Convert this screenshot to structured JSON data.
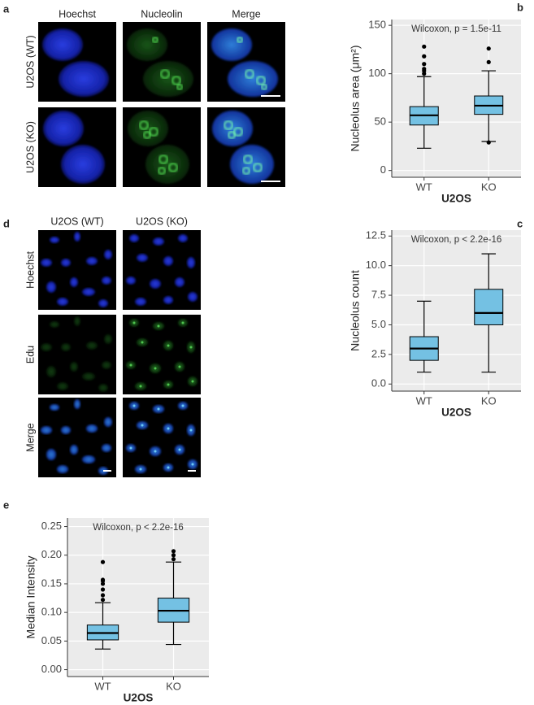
{
  "panel_labels": [
    "a",
    "b",
    "c",
    "d",
    "e"
  ],
  "panel_a": {
    "columns": [
      "Hoechst",
      "Nucleolin",
      "Merge"
    ],
    "rows": [
      "U2OS (WT)",
      "U2OS (KO)"
    ]
  },
  "panel_d": {
    "columns": [
      "U2OS (WT)",
      "U2OS (KO)"
    ],
    "rows": [
      "Hoechst",
      "Edu",
      "Merge"
    ]
  },
  "chart_data": [
    {
      "type": "box",
      "annotation": "Wilcoxon, p = 1.5e-11",
      "ylabel": "Nucleolus area (μm²)",
      "xlabel": "U2OS",
      "categories": [
        "WT",
        "KO"
      ],
      "color": "#74c1e3",
      "grid": true,
      "boxes": [
        {
          "min": 23,
          "q1": 47,
          "median": 57,
          "q3": 66,
          "max": 97,
          "outliers": [
            100,
            103,
            105,
            110,
            118,
            128
          ]
        },
        {
          "min": 30,
          "q1": 58,
          "median": 67,
          "q3": 77,
          "max": 103,
          "outliers": [
            29,
            112,
            126
          ]
        }
      ],
      "ylim": [
        -7,
        156
      ],
      "yticks": [
        0,
        50,
        100,
        150
      ]
    },
    {
      "type": "box",
      "annotation": "Wilcoxon, p < 2.2e-16",
      "ylabel": "Nucleolus count",
      "xlabel": "U2OS",
      "categories": [
        "WT",
        "KO"
      ],
      "color": "#74c1e3",
      "grid": true,
      "boxes": [
        {
          "min": 1,
          "q1": 2,
          "median": 3,
          "q3": 4,
          "max": 7,
          "outliers": []
        },
        {
          "min": 1,
          "q1": 5,
          "median": 6,
          "q3": 8,
          "max": 11,
          "outliers": []
        }
      ],
      "ylim": [
        -0.6,
        13
      ],
      "yticks": [
        {
          "value": 0,
          "label": "0.0"
        },
        2.5,
        {
          "value": 5,
          "label": "5.0"
        },
        7.5,
        {
          "value": 10,
          "label": "10.0"
        },
        12.5
      ]
    },
    {
      "type": "box",
      "annotation": "Wilcoxon, p < 2.2e-16",
      "ylabel": "Median Intensity",
      "xlabel": "U2OS",
      "categories": [
        "WT",
        "KO"
      ],
      "color": "#74c1e3",
      "grid": true,
      "boxes": [
        {
          "min": 0.036,
          "q1": 0.052,
          "median": 0.064,
          "q3": 0.078,
          "max": 0.117,
          "outliers": [
            0.122,
            0.13,
            0.14,
            0.15,
            0.155,
            0.157,
            0.188
          ]
        },
        {
          "min": 0.044,
          "q1": 0.083,
          "median": 0.103,
          "q3": 0.125,
          "max": 0.188,
          "outliers": [
            0.193,
            0.2,
            0.207
          ]
        }
      ],
      "ylim": [
        -0.012,
        0.265
      ],
      "yticks": [
        {
          "value": 0,
          "label": "0.00"
        },
        0.05,
        {
          "value": 0.1,
          "label": "0.10"
        },
        0.15,
        {
          "value": 0.2,
          "label": "0.20"
        },
        0.25
      ]
    }
  ]
}
